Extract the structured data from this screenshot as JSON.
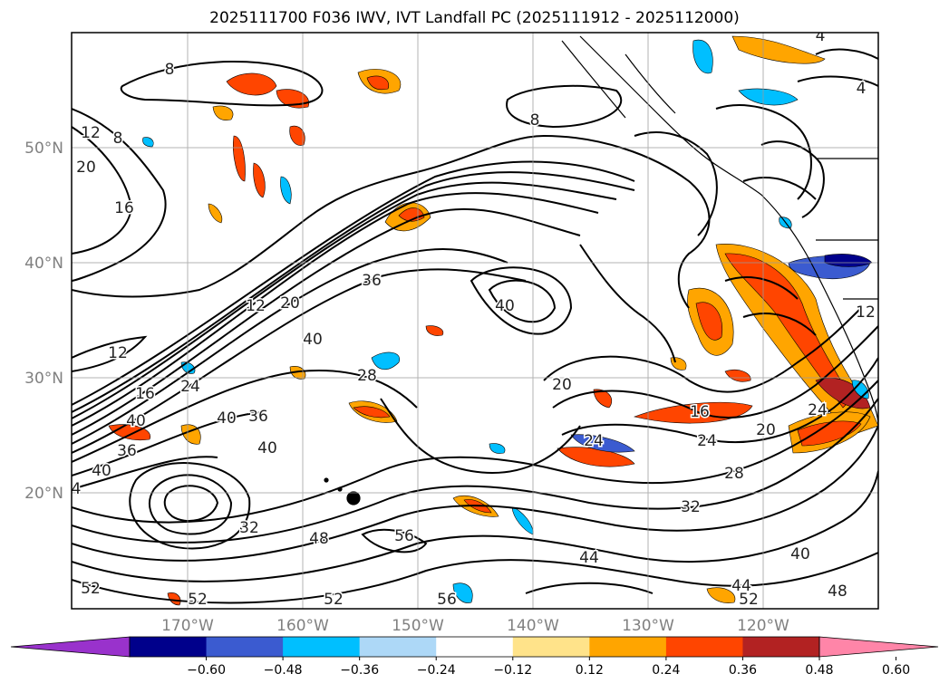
{
  "title": "2025111700 F036 IWV, IVT Landfall PC (2025111912 - 2025112000)",
  "axes": {
    "lon_labels": [
      "170°W",
      "160°W",
      "150°W",
      "140°W",
      "130°W",
      "120°W"
    ],
    "lat_labels": [
      "50°N",
      "40°N",
      "30°N",
      "20°N"
    ],
    "axis_color": "#808080"
  },
  "contour_labels": [
    {
      "text": "8"
    },
    {
      "text": "8"
    },
    {
      "text": "8"
    },
    {
      "text": "4"
    },
    {
      "text": "4"
    },
    {
      "text": "12"
    },
    {
      "text": "20"
    },
    {
      "text": "16"
    },
    {
      "text": "12"
    },
    {
      "text": "20"
    },
    {
      "text": "36"
    },
    {
      "text": "40"
    },
    {
      "text": "40"
    },
    {
      "text": "12"
    },
    {
      "text": "16"
    },
    {
      "text": "24"
    },
    {
      "text": "40"
    },
    {
      "text": "36"
    },
    {
      "text": "40"
    },
    {
      "text": "36"
    },
    {
      "text": "40"
    },
    {
      "text": "28"
    },
    {
      "text": "20"
    },
    {
      "text": "24"
    },
    {
      "text": "16"
    },
    {
      "text": "24"
    },
    {
      "text": "20"
    },
    {
      "text": "24"
    },
    {
      "text": "28"
    },
    {
      "text": "32"
    },
    {
      "text": "40"
    },
    {
      "text": "48"
    },
    {
      "text": "56"
    },
    {
      "text": "44"
    },
    {
      "text": "52"
    },
    {
      "text": "52"
    },
    {
      "text": "52"
    },
    {
      "text": "56"
    },
    {
      "text": "44"
    },
    {
      "text": "52"
    },
    {
      "text": "48"
    },
    {
      "text": "40"
    },
    {
      "text": "4"
    },
    {
      "text": "12"
    },
    {
      "text": "32"
    }
  ],
  "colorbar": {
    "tick_labels": [
      "−0.60",
      "−0.48",
      "−0.36",
      "−0.24",
      "−0.12",
      "0.12",
      "0.24",
      "0.36",
      "0.48",
      "0.60"
    ],
    "colors": [
      "#9932cc",
      "#00008b",
      "#3b5bd0",
      "#00bfff",
      "#add8f7",
      "#ffffff",
      "#ffe38a",
      "#ffa500",
      "#ff4500",
      "#b22222",
      "#ff85a8"
    ]
  },
  "chart_data": {
    "type": "heatmap",
    "title": "2025111700 F036 IWV, IVT Landfall PC (2025111912 - 2025112000)",
    "fill_variable_levels": [
      -0.6,
      -0.48,
      -0.36,
      -0.24,
      -0.12,
      0.12,
      0.24,
      0.36,
      0.48,
      0.6
    ],
    "contour_levels_labeled": [
      4,
      8,
      12,
      16,
      20,
      24,
      28,
      32,
      36,
      40,
      44,
      48,
      52,
      56
    ],
    "lon_ticks": [
      "170°W",
      "160°W",
      "150°W",
      "140°W",
      "130°W",
      "120°W"
    ],
    "lat_ticks": [
      "50°N",
      "40°N",
      "30°N",
      "20°N"
    ],
    "grid": true
  }
}
